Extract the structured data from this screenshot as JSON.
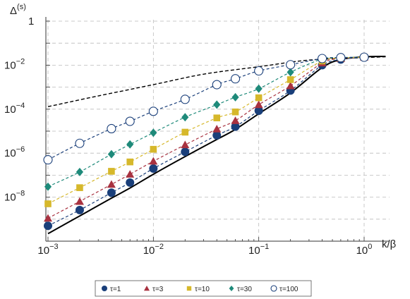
{
  "chart_data": {
    "type": "line",
    "x_scale": "log",
    "y_scale": "log",
    "xlim": [
      0.001,
      1.0
    ],
    "ylim": [
      1e-10,
      1.0
    ],
    "xlabel": "k/β",
    "ylabel": "Δ(s)",
    "ylabel_main": "Δ",
    "ylabel_sup": "(s)",
    "grid": true,
    "legend_position": "bottom",
    "x_ticks": [
      {
        "value": 0.001,
        "base": "10",
        "exp": "−3"
      },
      {
        "value": 0.01,
        "base": "10",
        "exp": "−2"
      },
      {
        "value": 0.1,
        "base": "10",
        "exp": "−1"
      },
      {
        "value": 1.0,
        "base": "10",
        "exp": "0"
      }
    ],
    "y_ticks": [
      {
        "value": 1.0,
        "base": "1",
        "exp": ""
      },
      {
        "value": 0.01,
        "base": "10",
        "exp": "−2"
      },
      {
        "value": 0.0001,
        "base": "10",
        "exp": "−4"
      },
      {
        "value": 1e-06,
        "base": "10",
        "exp": "−6"
      },
      {
        "value": 1e-08,
        "base": "10",
        "exp": "−8"
      }
    ],
    "reference_curves": [
      {
        "style": "solid",
        "color": "#000000",
        "x": [
          0.001,
          0.002,
          0.004,
          0.006,
          0.01,
          0.02,
          0.04,
          0.06,
          0.1,
          0.2,
          0.4,
          0.6,
          1.0,
          1.6
        ],
        "y": [
          2.2e-10,
          1.4e-09,
          9e-09,
          2.6e-08,
          1.1e-07,
          7e-07,
          4.2e-06,
          1.2e-05,
          6.2e-05,
          0.00055,
          0.0078,
          0.018,
          0.024,
          0.025
        ]
      },
      {
        "style": "dashed",
        "color": "#000000",
        "x": [
          0.001,
          0.003,
          0.01,
          0.03,
          0.1,
          0.3,
          1.0,
          1.6
        ],
        "y": [
          0.00013,
          0.0004,
          0.0013,
          0.0039,
          0.0085,
          0.017,
          0.022,
          0.024
        ]
      }
    ],
    "series": [
      {
        "name": "τ=1",
        "color": "#1a3f7a",
        "marker": "circle",
        "x": [
          0.001,
          0.002,
          0.004,
          0.006,
          0.01,
          0.02,
          0.04,
          0.06,
          0.1,
          0.2,
          0.4,
          0.6,
          1.0
        ],
        "y": [
          5e-10,
          2.6e-09,
          1.6e-08,
          4.6e-08,
          2e-07,
          1.15e-06,
          6.5e-06,
          1.6e-05,
          8.5e-05,
          0.0007,
          0.01,
          0.018,
          0.023
        ]
      },
      {
        "name": "τ=3",
        "color": "#a83240",
        "marker": "triangle",
        "x": [
          0.001,
          0.002,
          0.004,
          0.006,
          0.01,
          0.02,
          0.04,
          0.06,
          0.1,
          0.2,
          0.4,
          0.6,
          1.0
        ],
        "y": [
          1.1e-09,
          6.4e-09,
          3.8e-08,
          1.1e-07,
          4.3e-07,
          2.4e-06,
          1.25e-05,
          3e-05,
          0.00016,
          0.00115,
          0.0125,
          0.02,
          0.023
        ]
      },
      {
        "name": "τ=10",
        "color": "#d6b82b",
        "marker": "square",
        "x": [
          0.001,
          0.002,
          0.004,
          0.006,
          0.01,
          0.02,
          0.04,
          0.06,
          0.1,
          0.2,
          0.4,
          0.6,
          1.0
        ],
        "y": [
          5e-09,
          2.7e-08,
          1.5e-07,
          4e-07,
          1.5e-06,
          9e-06,
          4e-05,
          7.5e-05,
          0.00033,
          0.0022,
          0.0155,
          0.021,
          0.023
        ]
      },
      {
        "name": "τ=30",
        "color": "#1e8a7a",
        "marker": "diamond",
        "x": [
          0.001,
          0.002,
          0.004,
          0.006,
          0.01,
          0.02,
          0.04,
          0.06,
          0.1,
          0.2,
          0.4,
          0.6,
          1.0
        ],
        "y": [
          3e-08,
          1.4e-07,
          9e-07,
          2.5e-06,
          8.5e-06,
          4.3e-05,
          0.00016,
          0.00035,
          0.00085,
          0.0048,
          0.019,
          0.022,
          0.023
        ]
      },
      {
        "name": "τ=100",
        "color": "#1a3f7a",
        "marker": "open-circle",
        "x": [
          0.001,
          0.002,
          0.004,
          0.006,
          0.01,
          0.02,
          0.04,
          0.06,
          0.1,
          0.2,
          0.4,
          0.6,
          1.0
        ],
        "y": [
          5e-07,
          2.8e-06,
          1.3e-05,
          2.8e-05,
          8e-05,
          0.00028,
          0.0013,
          0.0024,
          0.0055,
          0.0105,
          0.02,
          0.022,
          0.023
        ]
      }
    ]
  }
}
